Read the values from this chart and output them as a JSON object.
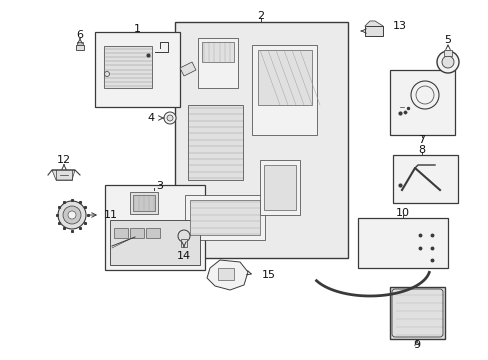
{
  "bg_color": "#ffffff",
  "lc": "#3a3a3a",
  "fc_light": "#f2f2f2",
  "fc_mid": "#e0e0e0",
  "fc_dark": "#c8c8c8",
  "figw": 4.89,
  "figh": 3.6,
  "dpi": 100
}
